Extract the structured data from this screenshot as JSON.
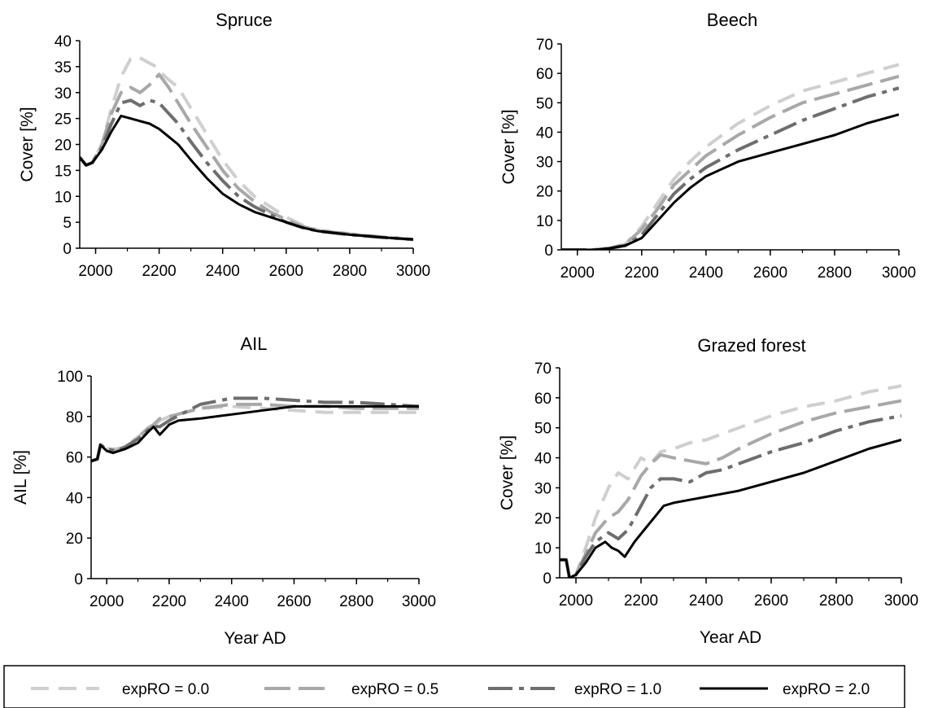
{
  "legend": [
    {
      "label": "expRO = 0.0",
      "color": "#cfcfcf",
      "dash": "22,12",
      "width": 4
    },
    {
      "label": "expRO = 0.5",
      "color": "#a8a8a8",
      "dash": "32,10",
      "width": 4
    },
    {
      "label": "expRO = 1.0",
      "color": "#6e6e6e",
      "dash": "30,8,6,8",
      "width": 4
    },
    {
      "label": "expRO = 2.0",
      "color": "#000000",
      "dash": "",
      "width": 3
    }
  ],
  "chart_data": [
    {
      "type": "line",
      "title": "Spruce",
      "xlabel": "",
      "ylabel": "Cover [%]",
      "xlim": [
        1950,
        3000
      ],
      "ylim": [
        0,
        40
      ],
      "xticks": [
        2000,
        2200,
        2400,
        2600,
        2800,
        3000
      ],
      "yticks": [
        0,
        5,
        10,
        15,
        20,
        25,
        30,
        35,
        40
      ],
      "series": [
        {
          "name": "expRO = 0.0",
          "x": [
            1950,
            1970,
            1990,
            2020,
            2050,
            2080,
            2110,
            2130,
            2160,
            2190,
            2220,
            2260,
            2300,
            2350,
            2400,
            2450,
            2500,
            2550,
            2600,
            2650,
            2700,
            2800,
            2900,
            3000
          ],
          "y": [
            17.5,
            16,
            16.5,
            20,
            27,
            33,
            36.5,
            37,
            36,
            35,
            33,
            31,
            27,
            22,
            17,
            13,
            10,
            8,
            6,
            4.5,
            3.5,
            2.8,
            2.2,
            1.7
          ]
        },
        {
          "name": "expRO = 0.5",
          "x": [
            1950,
            1970,
            1990,
            2020,
            2050,
            2080,
            2110,
            2140,
            2170,
            2200,
            2230,
            2260,
            2300,
            2350,
            2400,
            2450,
            2500,
            2550,
            2600,
            2650,
            2700,
            2800,
            2900,
            3000
          ],
          "y": [
            17.5,
            16,
            16.5,
            20,
            26,
            30,
            31,
            30,
            31.5,
            33.5,
            31,
            28,
            24,
            19.5,
            15,
            11.5,
            9,
            7,
            5.5,
            4.2,
            3.4,
            2.7,
            2.1,
            1.7
          ]
        },
        {
          "name": "expRO = 1.0",
          "x": [
            1950,
            1970,
            1990,
            2020,
            2050,
            2080,
            2110,
            2140,
            2170,
            2200,
            2230,
            2260,
            2300,
            2350,
            2400,
            2450,
            2500,
            2550,
            2600,
            2650,
            2700,
            2800,
            2900,
            3000
          ],
          "y": [
            17.5,
            16,
            16.5,
            19.5,
            24,
            28,
            28.5,
            27.5,
            28.5,
            28,
            26,
            24,
            20.5,
            16.5,
            13,
            10,
            8,
            6.5,
            5,
            4,
            3.3,
            2.6,
            2.1,
            1.7
          ]
        },
        {
          "name": "expRO = 2.0",
          "x": [
            1950,
            1970,
            1990,
            2020,
            2050,
            2080,
            2110,
            2140,
            2170,
            2200,
            2230,
            2260,
            2300,
            2350,
            2400,
            2450,
            2500,
            2550,
            2600,
            2650,
            2700,
            2800,
            2900,
            3000
          ],
          "y": [
            17.5,
            16,
            16.5,
            19,
            22.5,
            25.5,
            25,
            24.5,
            24,
            23,
            21.5,
            20,
            17,
            13.5,
            10.5,
            8.5,
            7,
            6,
            5,
            4,
            3.3,
            2.6,
            2.1,
            1.7
          ]
        }
      ]
    },
    {
      "type": "line",
      "title": "Beech",
      "xlabel": "",
      "ylabel": "Cover [%]",
      "xlim": [
        1950,
        3000
      ],
      "ylim": [
        0,
        70
      ],
      "xticks": [
        2000,
        2200,
        2400,
        2600,
        2800,
        3000
      ],
      "yticks": [
        0,
        10,
        20,
        30,
        40,
        50,
        60,
        70
      ],
      "series": [
        {
          "name": "expRO = 0.0",
          "x": [
            1950,
            2050,
            2100,
            2150,
            2200,
            2250,
            2300,
            2350,
            2400,
            2500,
            2600,
            2700,
            2800,
            2900,
            3000
          ],
          "y": [
            0,
            0,
            0.5,
            2,
            8,
            16,
            24,
            30,
            35,
            43,
            49,
            54,
            57,
            60,
            63
          ]
        },
        {
          "name": "expRO = 0.5",
          "x": [
            1950,
            2050,
            2100,
            2150,
            2200,
            2250,
            2300,
            2350,
            2400,
            2500,
            2600,
            2700,
            2800,
            2900,
            3000
          ],
          "y": [
            0,
            0,
            0.5,
            2,
            7,
            14,
            22,
            27,
            32,
            39,
            45,
            50,
            53,
            56,
            59
          ]
        },
        {
          "name": "expRO = 1.0",
          "x": [
            1950,
            2050,
            2100,
            2150,
            2200,
            2250,
            2300,
            2350,
            2400,
            2500,
            2600,
            2700,
            2800,
            2900,
            3000
          ],
          "y": [
            0,
            0,
            0.5,
            1.5,
            5,
            12,
            19,
            24,
            28,
            34,
            39,
            44,
            48,
            52,
            55
          ]
        },
        {
          "name": "expRO = 2.0",
          "x": [
            1950,
            2050,
            2100,
            2150,
            2200,
            2250,
            2300,
            2350,
            2400,
            2500,
            2600,
            2700,
            2800,
            2900,
            3000
          ],
          "y": [
            0,
            0,
            0.5,
            1.5,
            4,
            10,
            16,
            21,
            25,
            30,
            33,
            36,
            39,
            43,
            46
          ]
        }
      ]
    },
    {
      "type": "line",
      "title": "AIL",
      "xlabel": "Year AD",
      "ylabel": "AIL [%]",
      "xlim": [
        1950,
        3000
      ],
      "ylim": [
        0,
        100
      ],
      "xticks": [
        2000,
        2200,
        2400,
        2600,
        2800,
        3000
      ],
      "yticks": [
        0,
        20,
        40,
        60,
        80,
        100
      ],
      "series": [
        {
          "name": "expRO = 0.0",
          "x": [
            1950,
            1970,
            1980,
            2000,
            2030,
            2060,
            2100,
            2130,
            2150,
            2170,
            2200,
            2250,
            2300,
            2400,
            2500,
            2600,
            2700,
            2800,
            2900,
            3000
          ],
          "y": [
            58,
            59,
            66,
            64,
            64,
            65,
            70,
            74,
            75,
            78,
            80,
            82,
            84,
            85,
            84,
            83,
            82,
            82,
            82,
            82
          ]
        },
        {
          "name": "expRO = 0.5",
          "x": [
            1950,
            1970,
            1980,
            2000,
            2030,
            2060,
            2100,
            2130,
            2150,
            2170,
            2200,
            2250,
            2300,
            2400,
            2500,
            2600,
            2700,
            2800,
            2900,
            3000
          ],
          "y": [
            58,
            59,
            66,
            64,
            63,
            65,
            69,
            74,
            76,
            79,
            80,
            82,
            84,
            86,
            86,
            85,
            85,
            84,
            84,
            84
          ]
        },
        {
          "name": "expRO = 1.0",
          "x": [
            1950,
            1970,
            1980,
            2000,
            2030,
            2060,
            2100,
            2130,
            2150,
            2170,
            2200,
            2250,
            2300,
            2400,
            2500,
            2600,
            2700,
            2800,
            2900,
            3000
          ],
          "y": [
            58,
            59,
            66,
            64,
            63,
            65,
            69,
            73,
            75,
            75,
            78,
            82,
            86,
            89,
            89,
            88,
            87,
            87,
            86,
            85
          ]
        },
        {
          "name": "expRO = 2.0",
          "x": [
            1950,
            1970,
            1980,
            2000,
            2020,
            2060,
            2100,
            2130,
            2150,
            2170,
            2200,
            2230,
            2300,
            2400,
            2500,
            2600,
            2700,
            2800,
            2900,
            3000
          ],
          "y": [
            58,
            59,
            66,
            63,
            62,
            64,
            67,
            72,
            75,
            71,
            76,
            78,
            79,
            81,
            83,
            85,
            85,
            85,
            85,
            85
          ]
        }
      ]
    },
    {
      "type": "line",
      "title": "Grazed forest",
      "xlabel": "Year AD",
      "ylabel": "Cover [%]",
      "xlim": [
        1950,
        3000
      ],
      "ylim": [
        0,
        70
      ],
      "xticks": [
        2000,
        2200,
        2400,
        2600,
        2800,
        3000
      ],
      "yticks": [
        0,
        10,
        20,
        30,
        40,
        50,
        60,
        70
      ],
      "series": [
        {
          "name": "expRO = 0.0",
          "x": [
            1950,
            1970,
            1980,
            2000,
            2030,
            2060,
            2100,
            2130,
            2160,
            2200,
            2230,
            2260,
            2300,
            2350,
            2400,
            2450,
            2500,
            2600,
            2700,
            2800,
            2900,
            3000
          ],
          "y": [
            6,
            6,
            0,
            1,
            10,
            20,
            30,
            35,
            33,
            40,
            38,
            42,
            43,
            45,
            46,
            48,
            50,
            54,
            57,
            59,
            62,
            64
          ]
        },
        {
          "name": "expRO = 0.5",
          "x": [
            1950,
            1970,
            1980,
            2000,
            2030,
            2060,
            2100,
            2130,
            2160,
            2200,
            2230,
            2260,
            2300,
            2350,
            2400,
            2450,
            2500,
            2600,
            2700,
            2800,
            2900,
            3000
          ],
          "y": [
            6,
            6,
            0,
            1,
            8,
            15,
            20,
            22,
            26,
            34,
            38,
            41,
            40,
            39,
            38,
            40,
            43,
            48,
            52,
            55,
            57,
            59
          ]
        },
        {
          "name": "expRO = 1.0",
          "x": [
            1950,
            1970,
            1980,
            2000,
            2030,
            2060,
            2100,
            2130,
            2160,
            2190,
            2230,
            2260,
            2300,
            2350,
            2400,
            2450,
            2500,
            2600,
            2700,
            2800,
            2900,
            3000
          ],
          "y": [
            6,
            6,
            0,
            1,
            7,
            12,
            15,
            13,
            16,
            22,
            30,
            33,
            33,
            32,
            35,
            36,
            38,
            42,
            45,
            49,
            52,
            54
          ]
        },
        {
          "name": "expRO = 2.0",
          "x": [
            1950,
            1970,
            1980,
            2000,
            2030,
            2060,
            2090,
            2110,
            2130,
            2150,
            2180,
            2210,
            2240,
            2270,
            2300,
            2350,
            2400,
            2450,
            2500,
            2600,
            2700,
            2800,
            2900,
            3000
          ],
          "y": [
            6,
            6,
            0,
            1,
            5,
            10,
            12,
            10,
            9,
            7,
            12,
            16,
            20,
            24,
            25,
            26,
            27,
            28,
            29,
            32,
            35,
            39,
            43,
            46
          ]
        }
      ]
    }
  ]
}
